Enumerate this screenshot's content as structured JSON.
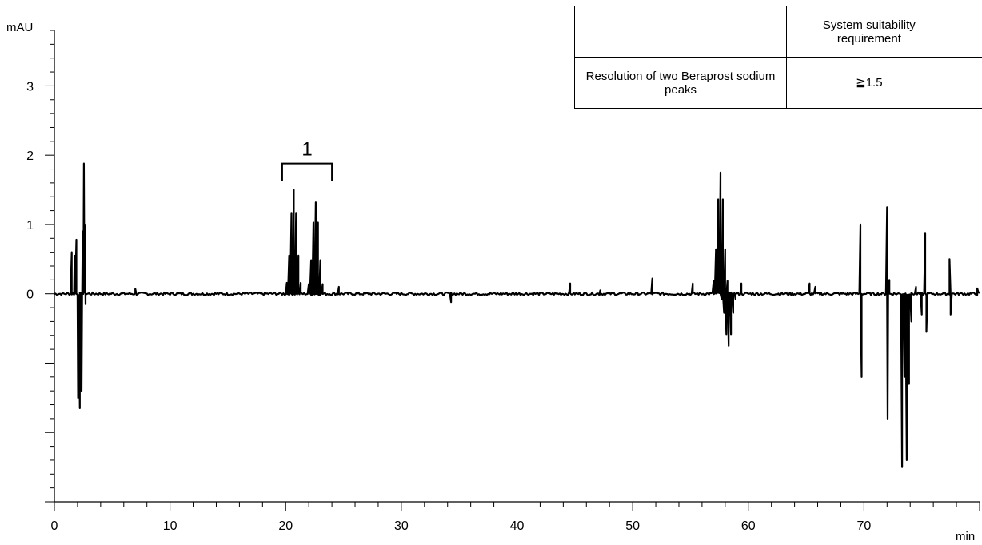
{
  "chart_data": {
    "type": "line",
    "title": "",
    "xlabel": "min",
    "ylabel": "mAU",
    "xlim": [
      0,
      80
    ],
    "ylim": [
      -3,
      3.8
    ],
    "x_ticks": [
      0,
      10,
      20,
      30,
      40,
      50,
      60,
      70
    ],
    "y_tick_labels": [
      0,
      1,
      2,
      3
    ],
    "grid": false,
    "series": [
      {
        "baseline": 0.0,
        "noise": 0.02,
        "features": [
          {
            "x": 1.5,
            "y": 0.6
          },
          {
            "x": 1.75,
            "y": 0.55
          },
          {
            "x": 1.9,
            "y": 0.78
          },
          {
            "x": 2.05,
            "y": -1.5
          },
          {
            "x": 2.2,
            "y": -1.65
          },
          {
            "x": 2.35,
            "y": -1.4
          },
          {
            "x": 2.45,
            "y": 0.9
          },
          {
            "x": 2.55,
            "y": 1.88
          },
          {
            "x": 2.62,
            "y": 1.0
          },
          {
            "x": 2.7,
            "y": -0.15
          },
          {
            "x": 7.0,
            "y": 0.07
          },
          {
            "x": 20.7,
            "y": 1.5
          },
          {
            "x": 22.6,
            "y": 1.32
          },
          {
            "x": 24.6,
            "y": 0.1
          },
          {
            "x": 34.3,
            "y": -0.12
          },
          {
            "x": 44.6,
            "y": 0.15
          },
          {
            "x": 47.2,
            "y": 0.05
          },
          {
            "x": 51.7,
            "y": 0.22
          },
          {
            "x": 55.2,
            "y": 0.15
          },
          {
            "x": 57.6,
            "y": 1.75
          },
          {
            "x": 58.3,
            "y": -0.75
          },
          {
            "x": 59.4,
            "y": 0.15
          },
          {
            "x": 65.3,
            "y": 0.15
          },
          {
            "x": 65.8,
            "y": 0.1
          },
          {
            "x": 69.7,
            "y": 1.0
          },
          {
            "x": 69.8,
            "y": -1.2
          },
          {
            "x": 72.0,
            "y": 1.25
          },
          {
            "x": 72.05,
            "y": -1.8
          },
          {
            "x": 72.2,
            "y": 0.2
          },
          {
            "x": 73.3,
            "y": -2.5
          },
          {
            "x": 73.5,
            "y": -1.2
          },
          {
            "x": 73.7,
            "y": -2.4
          },
          {
            "x": 73.9,
            "y": -1.3
          },
          {
            "x": 74.1,
            "y": -0.4
          },
          {
            "x": 74.5,
            "y": 0.1
          },
          {
            "x": 75.0,
            "y": -0.3
          },
          {
            "x": 75.3,
            "y": 0.88
          },
          {
            "x": 75.4,
            "y": -0.55
          },
          {
            "x": 77.4,
            "y": 0.5
          },
          {
            "x": 77.5,
            "y": -0.3
          },
          {
            "x": 79.8,
            "y": 0.08
          }
        ]
      }
    ],
    "annotations": [
      {
        "text": "1",
        "x_from": 19.7,
        "x_to": 24.0
      }
    ]
  },
  "spec_table": {
    "header": [
      "",
      "System  suitability requirement",
      ""
    ],
    "rows": [
      [
        "Resolution of two Beraprost sodium peaks",
        "≧1.5",
        ""
      ]
    ]
  }
}
